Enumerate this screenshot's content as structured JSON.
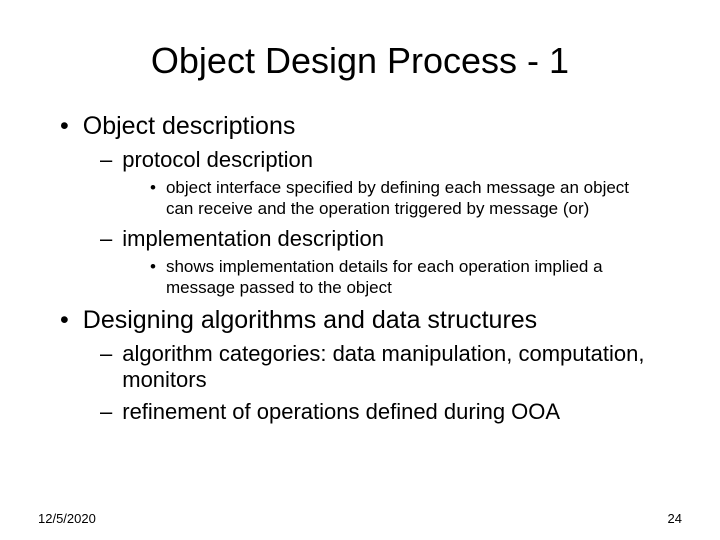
{
  "title": "Object Design Process - 1",
  "bullets": {
    "b1": "Object descriptions",
    "b1_1": "protocol description",
    "b1_1_1": "object interface specified by defining each message an object can receive and the operation triggered by message (or)",
    "b1_2": "implementation description",
    "b1_2_1": "shows implementation details for each operation implied a message passed to the object",
    "b2": "Designing algorithms and data structures",
    "b2_1": "algorithm categories: data manipulation, computation, monitors",
    "b2_2": "refinement of operations defined during OOA"
  },
  "footer": {
    "date": "12/5/2020",
    "page": "24"
  },
  "style": {
    "background": "#ffffff",
    "text_color": "#000000",
    "title_fontsize": 36,
    "l1_fontsize": 25,
    "l2_fontsize": 22,
    "l3_fontsize": 17,
    "footer_fontsize": 13,
    "l1_marker": "•",
    "l2_marker": "–",
    "l3_marker": "•"
  }
}
